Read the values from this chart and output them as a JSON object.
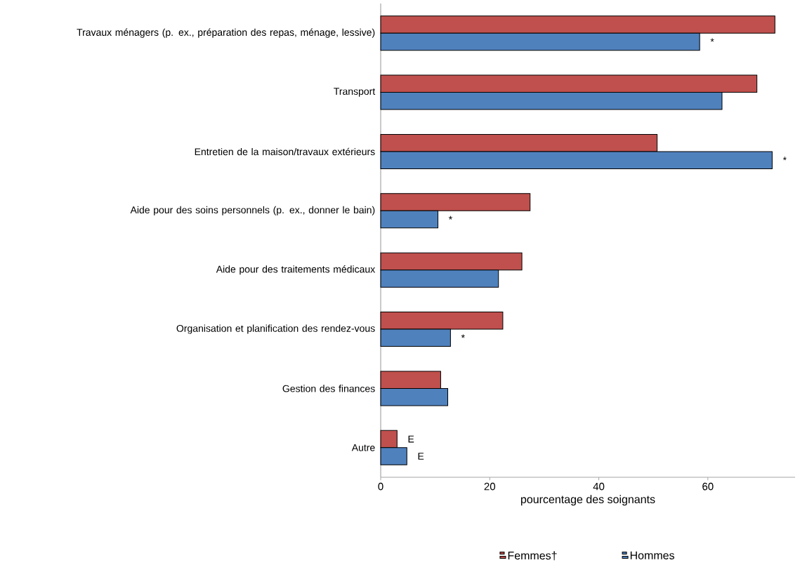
{
  "chart_data": {
    "type": "bar",
    "orientation": "horizontal",
    "xlabel": "pourcentage des soignants",
    "categories": [
      "Travaux ménagers (p. ex., préparation des repas, ménage, lessive)",
      "Transport",
      "Entretien de la maison/travaux extérieurs",
      "Aide pour des soins personnels (p. ex., donner le bain)",
      "Aide pour des traitements médicaux",
      "Organisation et planification des rendez-vous",
      "Gestion des finances",
      "Autre"
    ],
    "series": [
      {
        "name": "Femmes†",
        "color": "#c0504d",
        "values": [
          72.3,
          69.0,
          50.7,
          27.4,
          25.9,
          22.4,
          11.0,
          3.0
        ]
      },
      {
        "name": "Hommes",
        "color": "#4f81bd",
        "values": [
          58.5,
          62.6,
          71.8,
          10.5,
          21.6,
          12.8,
          12.3,
          4.8
        ]
      }
    ],
    "xlim": [
      0,
      76
    ],
    "xticks": [
      0,
      20,
      40,
      60
    ],
    "grid": false,
    "legend": "bottom",
    "annotations": [
      {
        "text": "*",
        "x": 58.5,
        "y": "Travaux ménagers (p. ex., préparation des repas, ménage, lessive)"
      },
      {
        "text": "*",
        "x": 71.8,
        "y": "Entretien de la maison/travaux extérieurs"
      },
      {
        "text": "*",
        "x": 10.5,
        "y": "Aide pour des soins personnels (p. ex., donner le bain)"
      },
      {
        "text": "*",
        "x": 12.8,
        "y": "Organisation et planification des rendez-vous"
      },
      {
        "text": "E",
        "x": 3.0,
        "y": "Autre"
      },
      {
        "text": "E",
        "x": 4.8,
        "y": "Autre"
      }
    ]
  }
}
